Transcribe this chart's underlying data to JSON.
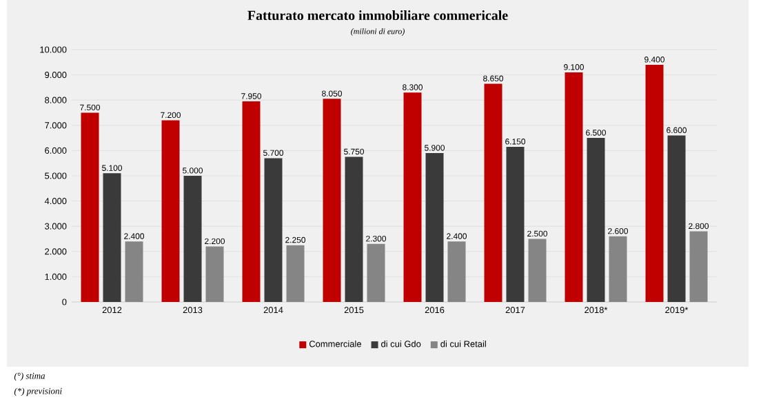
{
  "chart_data": {
    "type": "bar",
    "title": "Fatturato mercato immobiliare commericale",
    "subtitle": "(milioni di euro)",
    "categories": [
      "2012",
      "2013",
      "2014",
      "2015",
      "2016",
      "2017",
      "2018*",
      "2019*"
    ],
    "series": [
      {
        "name": "Commerciale",
        "color": "#c00000",
        "values": [
          7500,
          7200,
          7950,
          8050,
          8300,
          8650,
          9100,
          9400
        ],
        "value_labels": [
          "7.500",
          "7.200",
          "7.950",
          "8.050",
          "8.300",
          "8.650",
          "9.100",
          "9.400"
        ]
      },
      {
        "name": "di cui Gdo",
        "color": "#3a3a3a",
        "values": [
          5100,
          5000,
          5700,
          5750,
          5900,
          6150,
          6500,
          6600
        ],
        "value_labels": [
          "5.100",
          "5.000",
          "5.700",
          "5.750",
          "5.900",
          "6.150",
          "6.500",
          "6.600"
        ]
      },
      {
        "name": "di cui Retail",
        "color": "#858585",
        "values": [
          2400,
          2200,
          2250,
          2300,
          2400,
          2500,
          2600,
          2800
        ],
        "value_labels": [
          "2.400",
          "2.200",
          "2.250",
          "2.300",
          "2.400",
          "2.500",
          "2.600",
          "2.800"
        ]
      }
    ],
    "ylim": [
      0,
      10000
    ],
    "yticks": [
      0,
      {
        "value": 1000,
        "label": "1.000"
      },
      {
        "value": 2000,
        "label": "2.000"
      },
      {
        "value": 3000,
        "label": "3.000"
      },
      {
        "value": 4000,
        "label": "4.000"
      },
      {
        "value": 5000,
        "label": "5.000"
      },
      {
        "value": 6000,
        "label": "6.000"
      },
      {
        "value": 7000,
        "label": "7.000"
      },
      {
        "value": 8000,
        "label": "8.000"
      },
      {
        "value": 9000,
        "label": "9.000"
      },
      {
        "value": 10000,
        "label": "10.000"
      }
    ],
    "grid": "y",
    "legend": "bottom",
    "annotations": [
      "(°) stima",
      "(*) previsioni"
    ]
  }
}
